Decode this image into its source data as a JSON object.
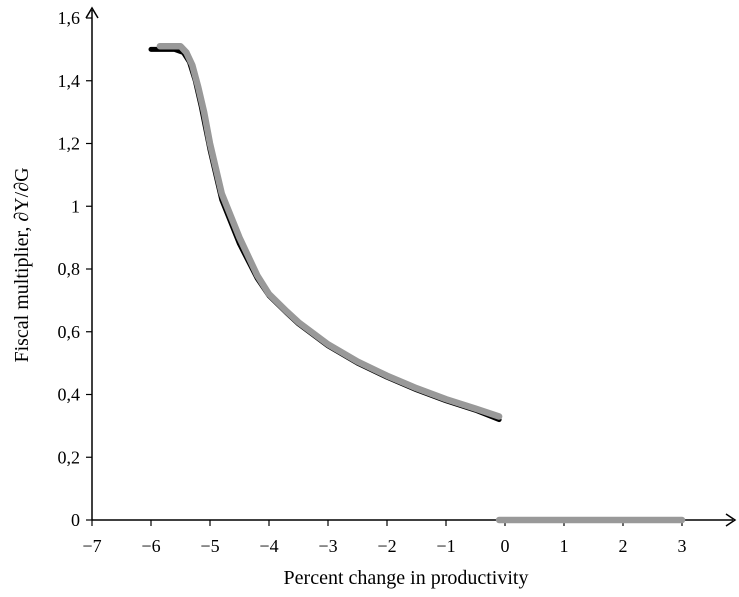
{
  "chart_data": {
    "type": "line",
    "title": "",
    "xlabel": "Percent change in productivity",
    "ylabel": "Fiscal multiplier, ∂Y/∂G",
    "xlim": [
      -7,
      3.6
    ],
    "ylim": [
      0,
      1.6
    ],
    "x_ticks": [
      -7,
      -6,
      -5,
      -4,
      -3,
      -2,
      -1,
      0,
      1,
      2,
      3
    ],
    "x_tick_labels": [
      "−7",
      "−6",
      "−5",
      "−4",
      "−3",
      "−2",
      "−1",
      "0",
      "1",
      "2",
      "3"
    ],
    "y_ticks": [
      0,
      0.2,
      0.4,
      0.6,
      0.8,
      1.0,
      1.2,
      1.4,
      1.6
    ],
    "y_tick_labels": [
      "0",
      "0,2",
      "0,4",
      "0,6",
      "0,8",
      "1",
      "1,2",
      "1,4",
      "1,6"
    ],
    "grid": false,
    "legend": "none",
    "series": [
      {
        "color": "#000000",
        "segments": [
          {
            "x": [
              -6.0,
              -5.6,
              -5.45,
              -5.35,
              -5.25,
              -5.15,
              -5.0,
              -4.8,
              -4.5,
              -4.2,
              -4.0,
              -3.7,
              -3.5,
              -3.0,
              -2.5,
              -2.0,
              -1.5,
              -1.0,
              -0.5,
              -0.1
            ],
            "y": [
              1.5,
              1.5,
              1.49,
              1.46,
              1.4,
              1.32,
              1.18,
              1.02,
              0.88,
              0.77,
              0.715,
              0.66,
              0.625,
              0.555,
              0.5,
              0.455,
              0.415,
              0.38,
              0.35,
              0.32
            ]
          }
        ]
      },
      {
        "color": "#999999",
        "segments": [
          {
            "x": [
              -5.85,
              -5.5,
              -5.4,
              -5.3,
              -5.2,
              -5.1,
              -5.0,
              -4.8,
              -4.5,
              -4.2,
              -4.0,
              -3.7,
              -3.5,
              -3.0,
              -2.5,
              -2.0,
              -1.5,
              -1.0,
              -0.5,
              -0.1
            ],
            "y": [
              1.51,
              1.51,
              1.49,
              1.45,
              1.38,
              1.3,
              1.2,
              1.04,
              0.9,
              0.78,
              0.72,
              0.665,
              0.63,
              0.56,
              0.505,
              0.46,
              0.42,
              0.385,
              0.355,
              0.33
            ]
          },
          {
            "x": [
              -0.1,
              3.0
            ],
            "y": [
              0,
              0
            ]
          }
        ]
      }
    ]
  }
}
